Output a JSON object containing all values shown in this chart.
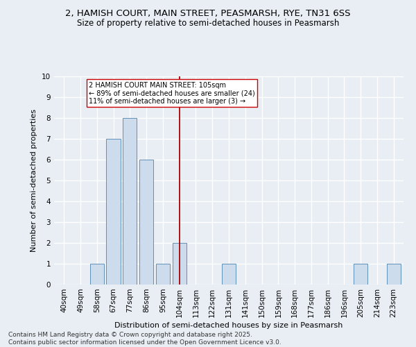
{
  "title_line1": "2, HAMISH COURT, MAIN STREET, PEASMARSH, RYE, TN31 6SS",
  "title_line2": "Size of property relative to semi-detached houses in Peasmarsh",
  "xlabel": "Distribution of semi-detached houses by size in Peasmarsh",
  "ylabel": "Number of semi-detached properties",
  "categories": [
    "40sqm",
    "49sqm",
    "58sqm",
    "67sqm",
    "77sqm",
    "86sqm",
    "95sqm",
    "104sqm",
    "113sqm",
    "122sqm",
    "131sqm",
    "141sqm",
    "150sqm",
    "159sqm",
    "168sqm",
    "177sqm",
    "186sqm",
    "196sqm",
    "205sqm",
    "214sqm",
    "223sqm"
  ],
  "values": [
    0,
    0,
    1,
    7,
    8,
    6,
    1,
    2,
    0,
    0,
    1,
    0,
    0,
    0,
    0,
    0,
    0,
    0,
    1,
    0,
    1
  ],
  "bar_color": "#ccdcec",
  "bar_edge_color": "#6090b8",
  "vline_x_index": 7,
  "vline_color": "#aa0000",
  "annotation_title": "2 HAMISH COURT MAIN STREET: 105sqm",
  "annotation_line1": "← 89% of semi-detached houses are smaller (24)",
  "annotation_line2": "11% of semi-detached houses are larger (3) →",
  "annotation_box_facecolor": "#ffffff",
  "annotation_box_edgecolor": "#cc0000",
  "ylim": [
    0,
    10
  ],
  "yticks": [
    0,
    1,
    2,
    3,
    4,
    5,
    6,
    7,
    8,
    9,
    10
  ],
  "footer_line1": "Contains HM Land Registry data © Crown copyright and database right 2025.",
  "footer_line2": "Contains public sector information licensed under the Open Government Licence v3.0.",
  "bg_color": "#e8eef4",
  "plot_bg_color": "#e8eef4",
  "grid_color": "#ffffff",
  "title_fontsize": 9.5,
  "subtitle_fontsize": 8.5,
  "axis_label_fontsize": 8,
  "tick_fontsize": 7.5,
  "footer_fontsize": 6.5,
  "annotation_fontsize": 7
}
